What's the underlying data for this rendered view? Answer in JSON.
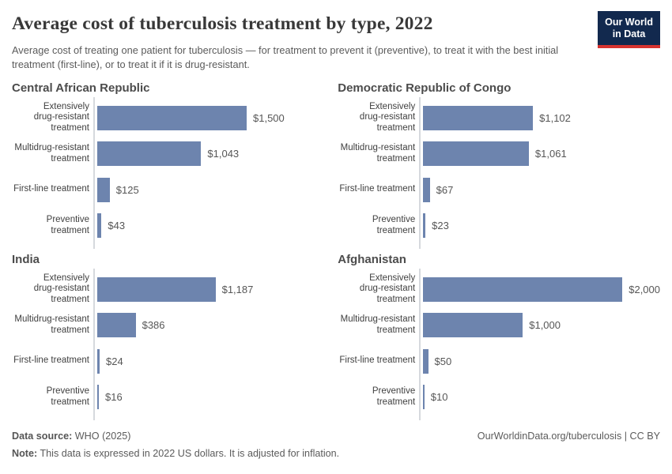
{
  "header": {
    "title": "Average cost of tuberculosis treatment by type, 2022",
    "subtitle": "Average cost of treating one patient for tuberculosis — for treatment to prevent it (preventive), to treat it with the best initial treatment (first-line), or to treat it if it is drug-resistant.",
    "logo": {
      "line1": "Our World",
      "line2": "in Data"
    }
  },
  "chart_data": {
    "type": "bar",
    "orientation": "horizontal",
    "title": "Average cost of tuberculosis treatment by type, 2022",
    "unit": "2022 US dollars",
    "xlim": [
      0,
      2000
    ],
    "grid": false,
    "bar_color": "#6d84ae",
    "categories": [
      "Extensively drug-resistant treatment",
      "Multidrug-resistant treatment",
      "First-line treatment",
      "Preventive treatment"
    ],
    "categories_wrapped": [
      "Extensively\ndrug-resistant\ntreatment",
      "Multidrug-resistant\ntreatment",
      "First-line treatment",
      "Preventive\ntreatment"
    ],
    "panels": [
      {
        "country": "Central African Republic",
        "values": [
          1500,
          1043,
          125,
          43
        ],
        "value_labels": [
          "$1,500",
          "$1,043",
          "$125",
          "$43"
        ]
      },
      {
        "country": "Democratic Republic of Congo",
        "values": [
          1102,
          1061,
          67,
          23
        ],
        "value_labels": [
          "$1,102",
          "$1,061",
          "$67",
          "$23"
        ]
      },
      {
        "country": "India",
        "values": [
          1187,
          386,
          24,
          16
        ],
        "value_labels": [
          "$1,187",
          "$386",
          "$24",
          "$16"
        ]
      },
      {
        "country": "Afghanistan",
        "values": [
          2000,
          1000,
          50,
          10
        ],
        "value_labels": [
          "$2,000",
          "$1,000",
          "$50",
          "$10"
        ]
      }
    ]
  },
  "footer": {
    "datasource_label": "Data source:",
    "datasource_value": " WHO (2025)",
    "note_label": "Note:",
    "note_value": " This data is expressed in 2022 US dollars. It is adjusted for inflation.",
    "citation": "OurWorldinData.org/tuberculosis | CC BY"
  }
}
